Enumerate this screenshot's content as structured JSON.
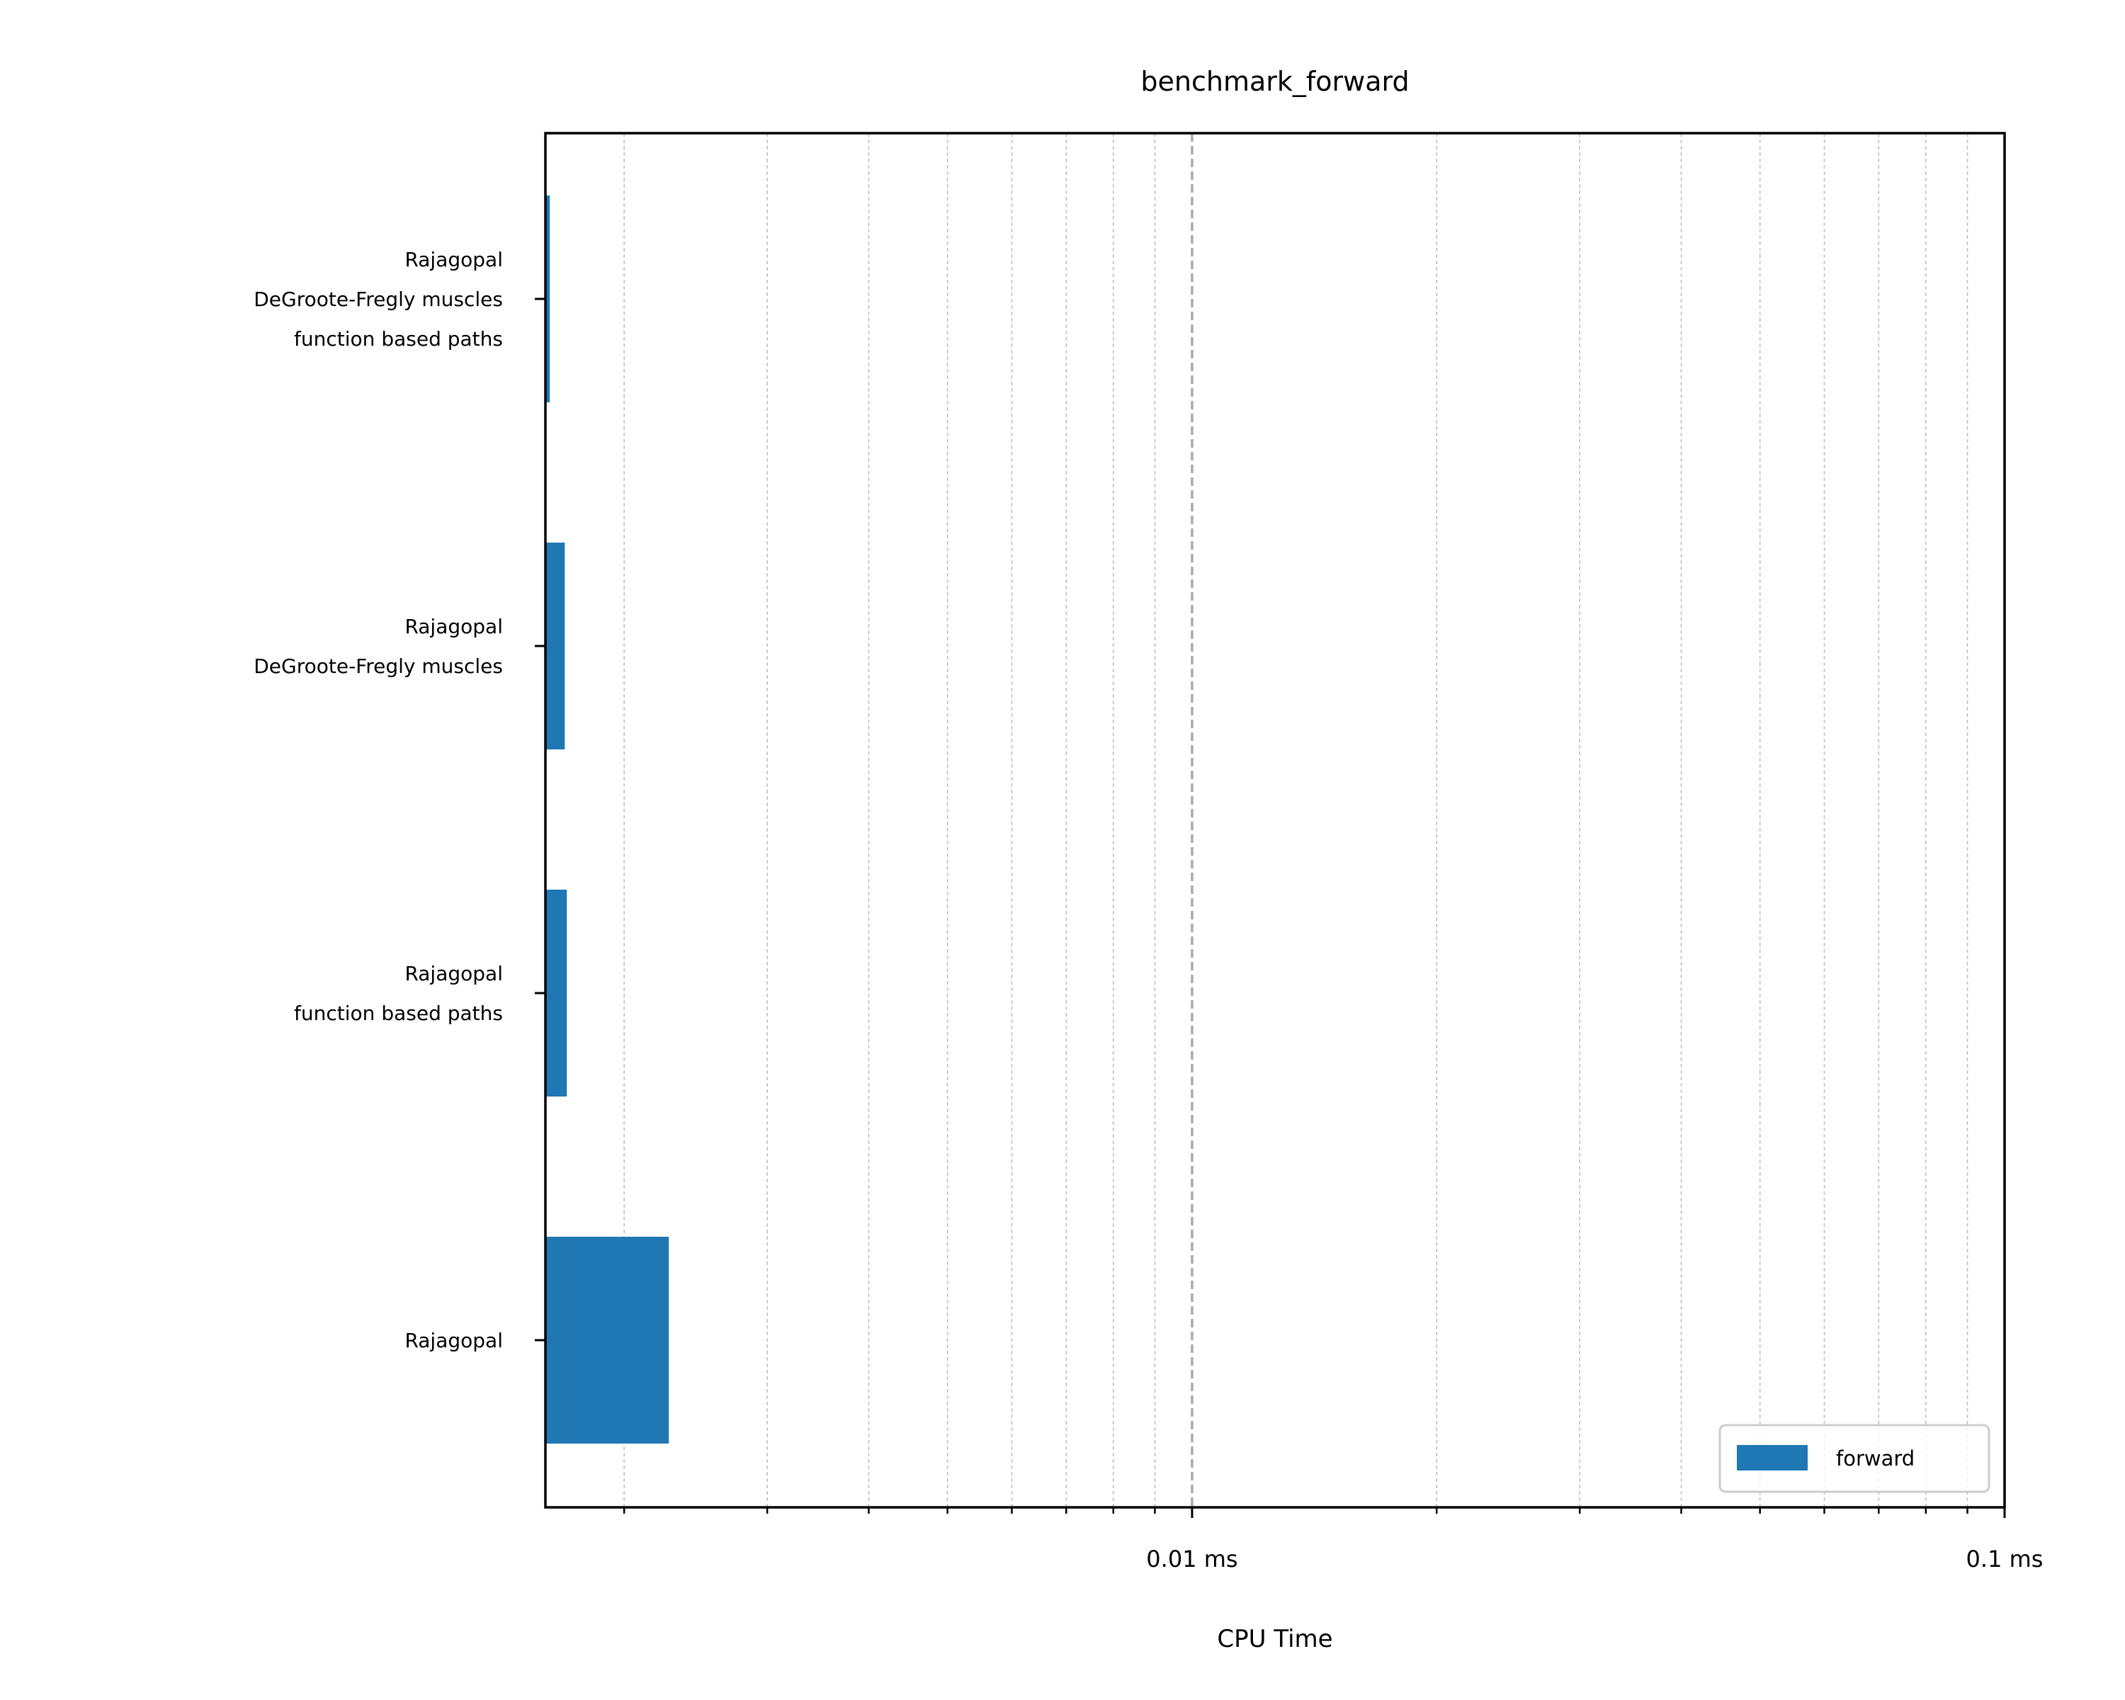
{
  "chart_data": {
    "type": "bar",
    "orientation": "horizontal",
    "title": "benchmark_forward",
    "xlabel": "CPU Time",
    "ylabel": "",
    "x_scale": "log",
    "xlim": [
      0.0016,
      0.1
    ],
    "grid": {
      "major": true,
      "minor": true,
      "reference_line_at": 0.01
    },
    "x_ticks": [
      {
        "value": 0.01,
        "label": "0.01 ms"
      },
      {
        "value": 0.1,
        "label": "0.1 ms"
      }
    ],
    "categories": [
      [
        "Rajagopal",
        "DeGroote-Fregly muscles",
        "function based paths"
      ],
      [
        "Rajagopal",
        "DeGroote-Fregly muscles"
      ],
      [
        "Rajagopal",
        "function based paths"
      ],
      [
        "Rajagopal"
      ]
    ],
    "series": [
      {
        "name": "forward",
        "color": "#1f77b4",
        "values": [
          0.00162,
          0.00169,
          0.0017,
          0.00227
        ]
      }
    ],
    "legend": {
      "placement": "lower-right"
    }
  }
}
